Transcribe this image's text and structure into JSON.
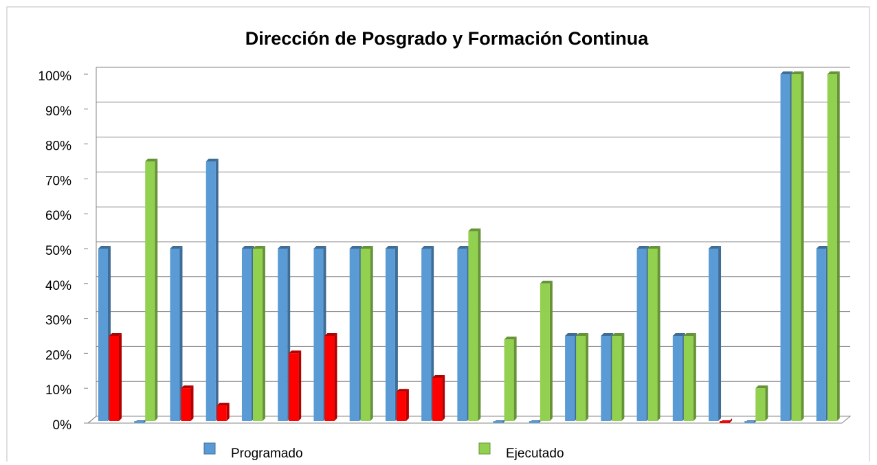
{
  "chart_data": {
    "type": "bar3d",
    "title": "Dirección de Posgrado y Formación Continua",
    "categories": [
      null,
      null,
      null,
      null,
      null,
      null,
      null,
      null,
      null,
      null,
      null,
      null,
      null,
      null,
      null,
      null,
      null,
      null,
      null,
      null,
      null
    ],
    "series": [
      {
        "name": "Programado",
        "color": "#5b9bd5",
        "values": [
          50,
          0,
          50,
          75,
          50,
          50,
          50,
          50,
          50,
          50,
          50,
          0,
          0,
          25,
          25,
          50,
          25,
          50,
          0,
          100,
          50
        ]
      },
      {
        "name": "Ejecutado",
        "color": "#92d050",
        "values": [
          25,
          75,
          10,
          5,
          50,
          20,
          25,
          50,
          9,
          13,
          55,
          24,
          40,
          25,
          25,
          50,
          25,
          0,
          10,
          100,
          100
        ],
        "colors": [
          "#ff0000",
          "#92d050",
          "#ff0000",
          "#ff0000",
          "#92d050",
          "#ff0000",
          "#ff0000",
          "#92d050",
          "#ff0000",
          "#ff0000",
          "#92d050",
          "#92d050",
          "#92d050",
          "#92d050",
          "#92d050",
          "#92d050",
          "#92d050",
          "#ff0000",
          "#92d050",
          "#92d050",
          "#92d050"
        ]
      }
    ],
    "ylim": [
      0,
      100
    ],
    "yticks": [
      {
        "value": 0,
        "label": "0%"
      },
      {
        "value": 10,
        "label": "10%"
      },
      {
        "value": 20,
        "label": "20%"
      },
      {
        "value": 30,
        "label": "30%"
      },
      {
        "value": 40,
        "label": "40%"
      },
      {
        "value": 50,
        "label": "50%"
      },
      {
        "value": 60,
        "label": "60%"
      },
      {
        "value": 70,
        "label": "70%"
      },
      {
        "value": 80,
        "label": "80%"
      },
      {
        "value": 90,
        "label": "90%"
      },
      {
        "value": 100,
        "label": "100%"
      }
    ],
    "grid": true,
    "legend": "bottom"
  }
}
